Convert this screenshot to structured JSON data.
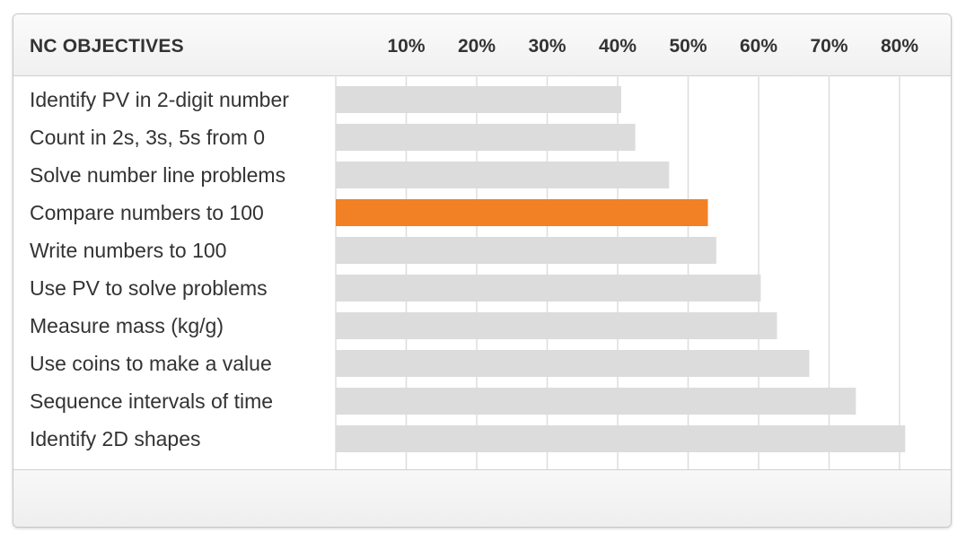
{
  "header": {
    "title": "NC OBJECTIVES"
  },
  "chart_data": {
    "type": "bar",
    "orientation": "horizontal",
    "title": "",
    "xlabel": "",
    "ylabel": "",
    "tick_labels": [
      "10%",
      "20%",
      "30%",
      "40%",
      "50%",
      "60%",
      "70%",
      "80%"
    ],
    "xlim": [
      0,
      83
    ],
    "grid": true,
    "categories": [
      "Identify PV in 2-digit number",
      "Count in 2s, 3s, 5s from 0",
      "Solve number line problems",
      "Compare numbers to 100",
      "Write numbers to 100",
      "Use PV to solve problems",
      "Measure mass (kg/g)",
      "Use coins to make a value",
      "Sequence intervals of time",
      "Identify 2D shapes"
    ],
    "values": [
      40.5,
      42.5,
      47.3,
      52.8,
      54.0,
      60.3,
      62.6,
      67.2,
      73.8,
      80.8
    ],
    "highlighted_index": 3,
    "colors": {
      "bar": "#dcdcdc",
      "highlight": "#f28024",
      "grid": "#dddddd",
      "text": "#333333"
    }
  }
}
